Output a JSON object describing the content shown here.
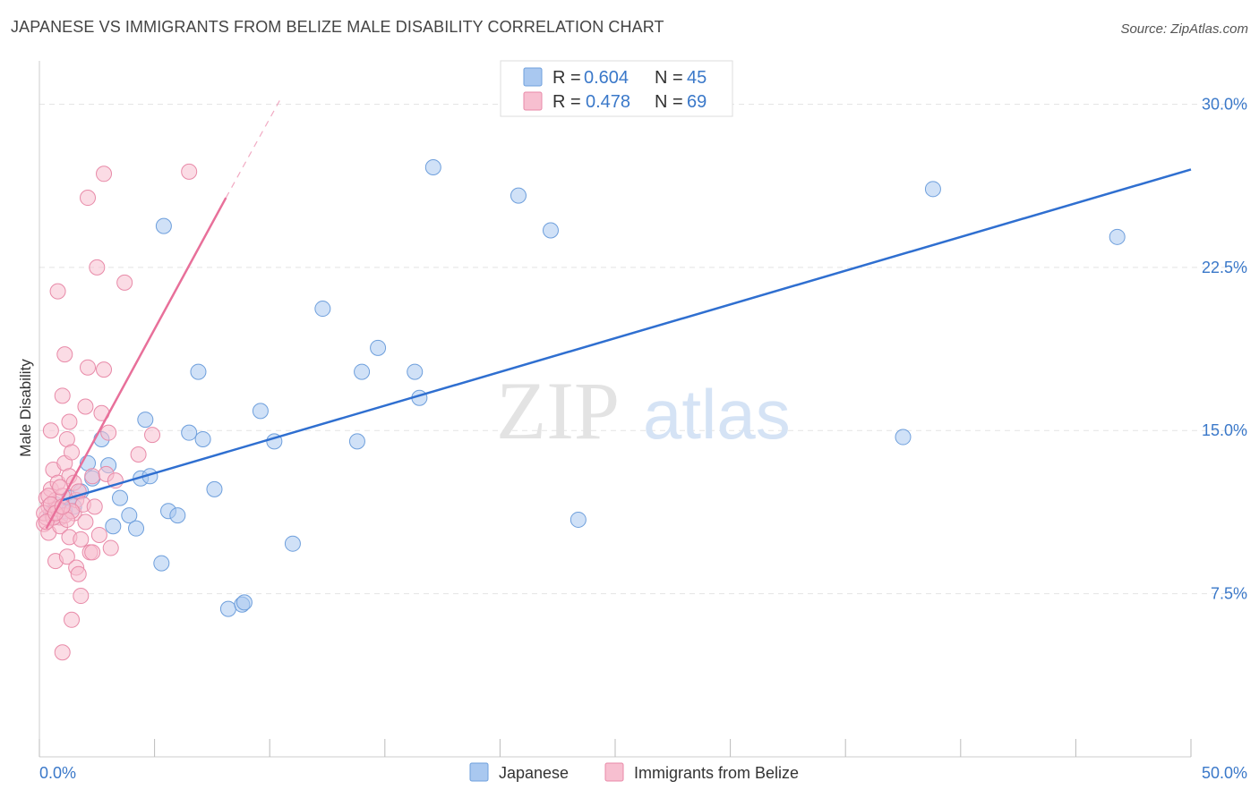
{
  "header": {
    "title": "JAPANESE VS IMMIGRANTS FROM BELIZE MALE DISABILITY CORRELATION CHART",
    "source": "Source: ZipAtlas.com"
  },
  "watermark": {
    "zip": "ZIP",
    "atlas": "atlas"
  },
  "legend": {
    "r_label": "R =",
    "n_label": "N =",
    "rows": [
      {
        "series": "Japanese",
        "r": "0.604",
        "n": "45"
      },
      {
        "series": "Immigrants from Belize",
        "r": "0.478",
        "n": "69"
      }
    ]
  },
  "chart_data": {
    "type": "scatter",
    "title": "JAPANESE VS IMMIGRANTS FROM BELIZE MALE DISABILITY CORRELATION CHART",
    "xlabel": "",
    "ylabel": "Male Disability",
    "xlim": [
      0,
      50
    ],
    "ylim": [
      0,
      31.5
    ],
    "x_tick_labels": {
      "min": "0.0%",
      "max": "50.0%"
    },
    "y_ticks": [
      {
        "value": 7.5,
        "label": "7.5%"
      },
      {
        "value": 15.0,
        "label": "15.0%"
      },
      {
        "value": 22.5,
        "label": "22.5%"
      },
      {
        "value": 30.0,
        "label": "30.0%"
      }
    ],
    "grid": true,
    "legend_position": "top-center",
    "series": [
      {
        "name": "Japanese",
        "color": "#a9c8f0",
        "stroke": "#6e9fdc",
        "line_color": "#2f6fd0",
        "trend": {
          "x": [
            1.0,
            50.0
          ],
          "y": [
            11.8,
            27.0
          ]
        },
        "points": [
          [
            1.5,
            11.5
          ],
          [
            1.8,
            12.2
          ],
          [
            2.1,
            13.5
          ],
          [
            2.3,
            12.8
          ],
          [
            2.7,
            14.6
          ],
          [
            3.0,
            13.4
          ],
          [
            3.2,
            10.6
          ],
          [
            3.5,
            11.9
          ],
          [
            3.9,
            11.1
          ],
          [
            4.2,
            10.5
          ],
          [
            4.4,
            12.8
          ],
          [
            4.6,
            15.5
          ],
          [
            4.8,
            12.9
          ],
          [
            5.3,
            8.9
          ],
          [
            5.4,
            24.4
          ],
          [
            5.6,
            11.3
          ],
          [
            6.0,
            11.1
          ],
          [
            6.5,
            14.9
          ],
          [
            6.9,
            17.7
          ],
          [
            7.1,
            14.6
          ],
          [
            7.6,
            12.3
          ],
          [
            8.2,
            6.8
          ],
          [
            8.8,
            7.0
          ],
          [
            8.9,
            7.1
          ],
          [
            9.6,
            15.9
          ],
          [
            10.2,
            14.5
          ],
          [
            11.0,
            9.8
          ],
          [
            12.3,
            20.6
          ],
          [
            13.8,
            14.5
          ],
          [
            14.0,
            17.7
          ],
          [
            14.7,
            18.8
          ],
          [
            16.3,
            17.7
          ],
          [
            16.5,
            16.5
          ],
          [
            17.1,
            27.1
          ],
          [
            20.8,
            25.8
          ],
          [
            22.2,
            24.2
          ],
          [
            23.4,
            10.9
          ],
          [
            37.5,
            14.7
          ],
          [
            38.8,
            26.1
          ],
          [
            46.8,
            23.9
          ],
          [
            0.9,
            11.0
          ],
          [
            1.1,
            11.3
          ],
          [
            0.7,
            11.6
          ],
          [
            1.3,
            11.9
          ],
          [
            0.5,
            11.2
          ]
        ]
      },
      {
        "name": "Immigrants from Belize",
        "color": "#f7bfd0",
        "stroke": "#e88aa8",
        "line_color": "#e8709a",
        "trend": {
          "x": [
            0.3,
            8.1
          ],
          "y": [
            10.5,
            25.7
          ]
        },
        "trend_dashed": {
          "x": [
            8.1,
            10.5
          ],
          "y": [
            25.7,
            30.3
          ]
        },
        "points": [
          [
            0.2,
            10.7
          ],
          [
            0.3,
            11.0
          ],
          [
            0.3,
            11.9
          ],
          [
            0.4,
            11.5
          ],
          [
            0.4,
            10.3
          ],
          [
            0.5,
            12.3
          ],
          [
            0.5,
            15.0
          ],
          [
            0.6,
            11.2
          ],
          [
            0.6,
            13.2
          ],
          [
            0.7,
            9.0
          ],
          [
            0.7,
            11.8
          ],
          [
            0.8,
            12.6
          ],
          [
            0.8,
            21.4
          ],
          [
            0.9,
            11.0
          ],
          [
            0.9,
            10.6
          ],
          [
            1.0,
            12.0
          ],
          [
            1.0,
            16.6
          ],
          [
            1.0,
            4.8
          ],
          [
            1.1,
            13.5
          ],
          [
            1.1,
            18.5
          ],
          [
            1.2,
            14.6
          ],
          [
            1.2,
            9.2
          ],
          [
            1.3,
            12.9
          ],
          [
            1.3,
            10.1
          ],
          [
            1.3,
            15.4
          ],
          [
            1.4,
            6.3
          ],
          [
            1.4,
            14.0
          ],
          [
            1.5,
            11.2
          ],
          [
            1.5,
            12.6
          ],
          [
            1.6,
            8.7
          ],
          [
            1.6,
            11.8
          ],
          [
            1.7,
            8.4
          ],
          [
            1.7,
            12.2
          ],
          [
            1.8,
            7.4
          ],
          [
            1.8,
            10.0
          ],
          [
            1.9,
            11.6
          ],
          [
            2.0,
            10.8
          ],
          [
            2.0,
            16.1
          ],
          [
            2.1,
            17.9
          ],
          [
            2.1,
            25.7
          ],
          [
            2.2,
            9.4
          ],
          [
            2.3,
            9.4
          ],
          [
            2.3,
            12.9
          ],
          [
            2.4,
            11.5
          ],
          [
            2.5,
            22.5
          ],
          [
            2.6,
            10.2
          ],
          [
            2.7,
            15.8
          ],
          [
            2.8,
            17.8
          ],
          [
            2.9,
            13.0
          ],
          [
            3.0,
            14.9
          ],
          [
            3.1,
            9.6
          ],
          [
            3.3,
            12.7
          ],
          [
            2.8,
            26.8
          ],
          [
            3.7,
            21.8
          ],
          [
            4.3,
            13.9
          ],
          [
            4.9,
            14.8
          ],
          [
            6.5,
            26.9
          ],
          [
            0.2,
            11.2
          ],
          [
            0.6,
            11.0
          ],
          [
            0.8,
            11.4
          ],
          [
            1.1,
            11.1
          ],
          [
            1.4,
            11.3
          ],
          [
            0.4,
            12.0
          ],
          [
            0.9,
            12.4
          ],
          [
            1.2,
            10.9
          ],
          [
            0.3,
            10.8
          ],
          [
            0.5,
            11.6
          ],
          [
            0.7,
            11.2
          ],
          [
            1.0,
            11.5
          ]
        ]
      }
    ]
  }
}
